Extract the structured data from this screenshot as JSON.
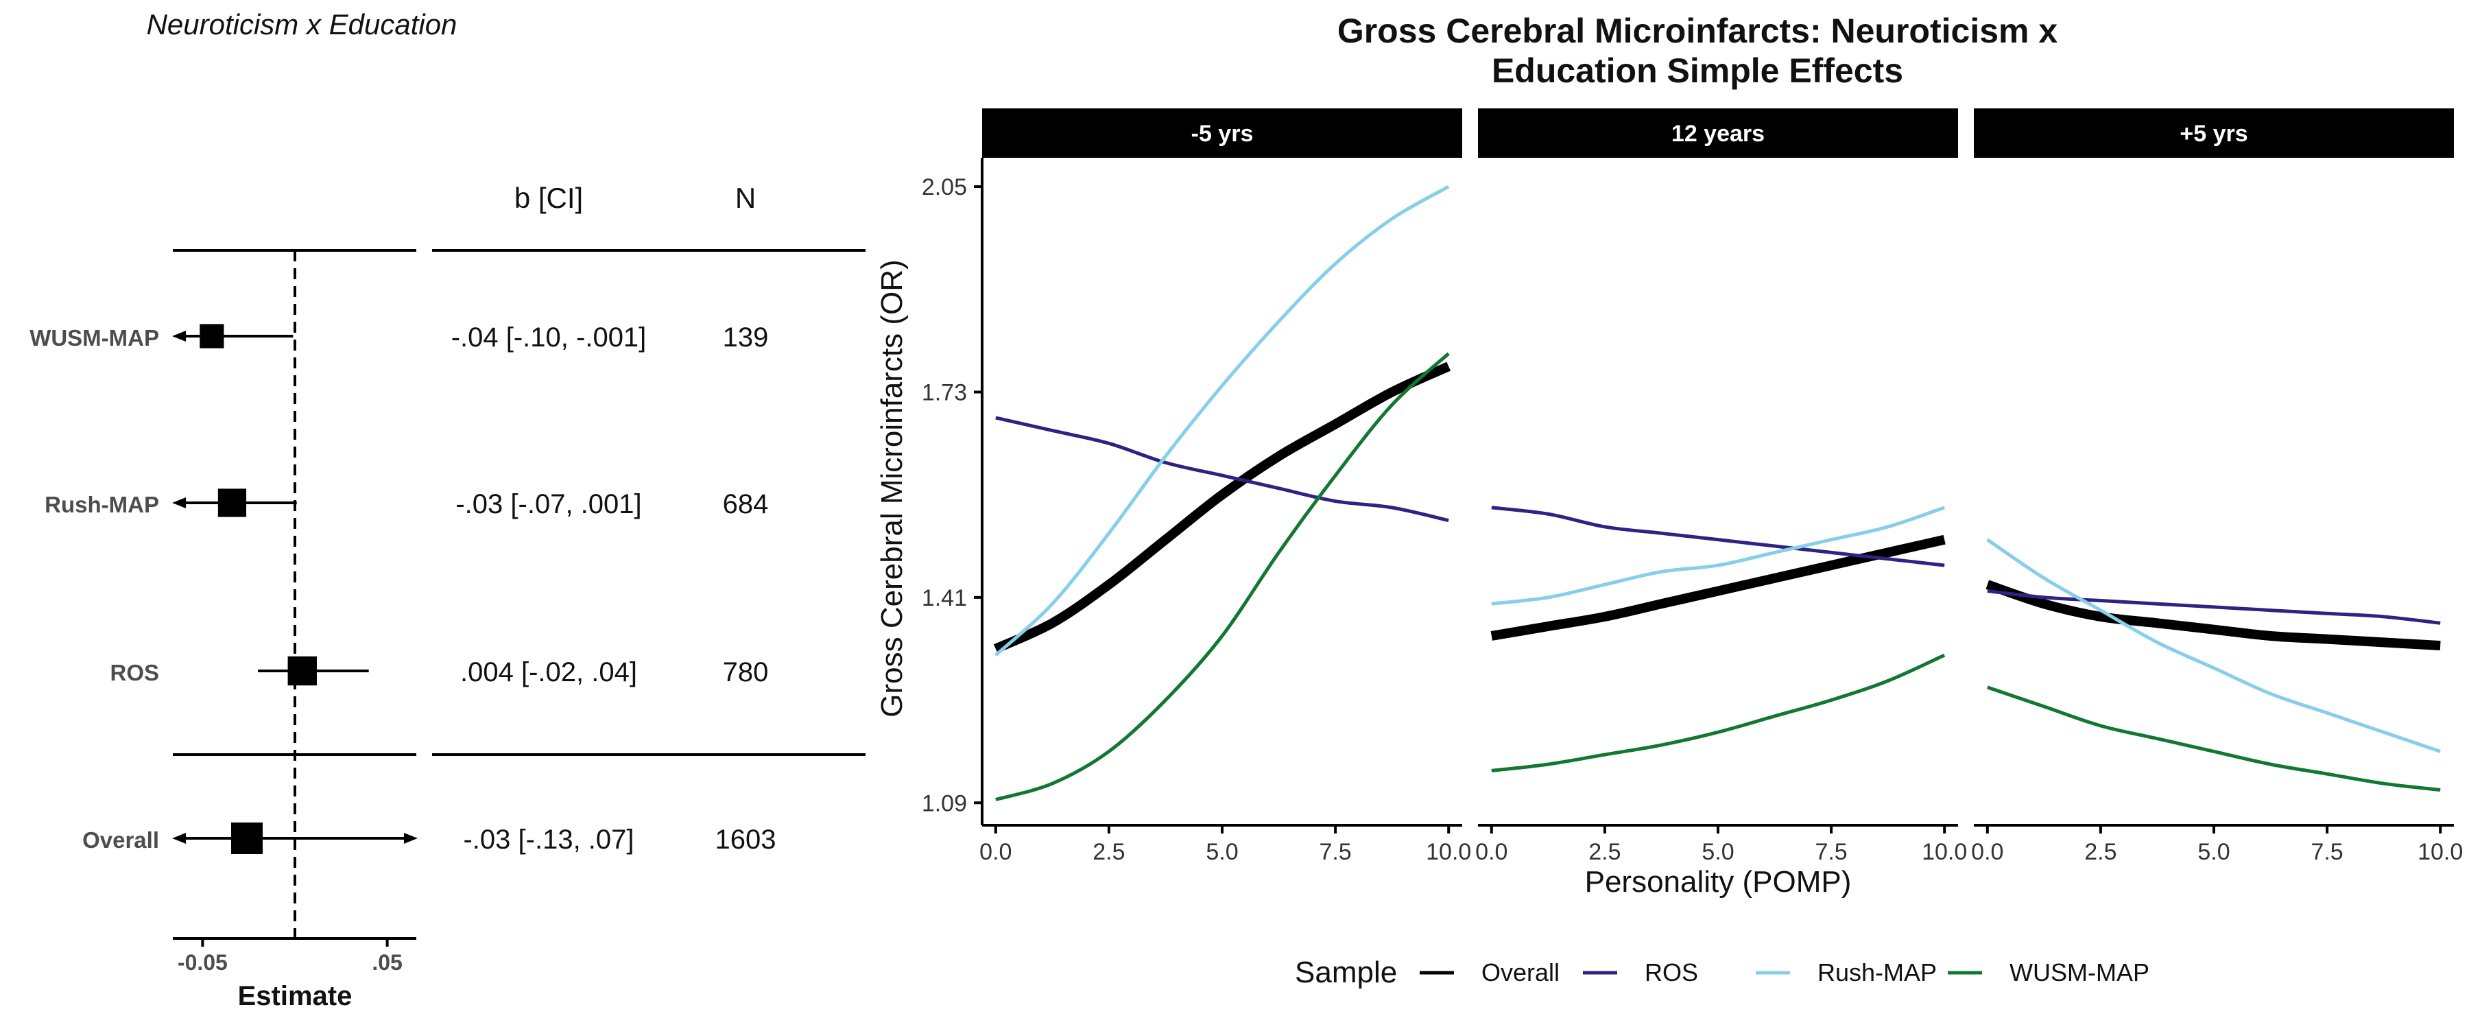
{
  "chart_data": [
    {
      "type": "forest",
      "title": "Neuroticism x Education",
      "xlabel": "Estimate",
      "xlim": [
        -0.065,
        0.065
      ],
      "reference_line": 0,
      "x_ticks": [
        -0.05,
        0.05
      ],
      "x_tick_labels": [
        "-0.05",
        ".05"
      ],
      "table_headers": {
        "estimate": "b [CI]",
        "n": "N"
      },
      "rows": [
        {
          "label": "WUSM-MAP",
          "estimate": -0.045,
          "ci_low": -0.062,
          "ci_high": -0.001,
          "marker_weight": 0.55,
          "arrow_low": true,
          "arrow_high": false,
          "ci_text": "-.04 [-.10, -.001]",
          "n": "139"
        },
        {
          "label": "Rush-MAP",
          "estimate": -0.034,
          "ci_low": -0.062,
          "ci_high": 0.001,
          "marker_weight": 0.8,
          "arrow_low": true,
          "arrow_high": false,
          "ci_text": "-.03 [-.07, .001]",
          "n": "684"
        },
        {
          "label": "ROS",
          "estimate": 0.004,
          "ci_low": -0.02,
          "ci_high": 0.04,
          "marker_weight": 0.85,
          "arrow_low": false,
          "arrow_high": false,
          "ci_text": ".004 [-.02, .04]",
          "n": "780"
        },
        {
          "label": "Overall",
          "estimate": -0.026,
          "ci_low": -0.062,
          "ci_high": 0.062,
          "marker_weight": 1.0,
          "arrow_low": true,
          "arrow_high": true,
          "ci_text": "-.03 [-.13, .07]",
          "n": "1603",
          "summary": true
        }
      ]
    },
    {
      "type": "line",
      "title": "Gross Cerebral Microinfarcts: Neuroticism x",
      "subtitle": "Education Simple Effects",
      "xlabel": "Personality (POMP)",
      "ylabel": "Gross Cerebral Microinfarcts (OR)",
      "xlim": [
        -0.3,
        10.3
      ],
      "ylim": [
        1.055,
        2.095
      ],
      "x_ticks": [
        0,
        2.5,
        5,
        7.5,
        10
      ],
      "x_tick_labels": [
        "0.0",
        "2.5",
        "5.0",
        "7.5",
        "10.0"
      ],
      "y_ticks": [
        1.09,
        1.41,
        1.73,
        2.05
      ],
      "y_tick_labels": [
        "1.09",
        "1.41",
        "1.73",
        "2.05"
      ],
      "x": [
        0,
        1.25,
        2.5,
        3.75,
        5,
        6.25,
        7.5,
        8.75,
        10
      ],
      "legend": {
        "title": "Sample",
        "placement": "bottom"
      },
      "series_styles": [
        {
          "name": "Overall",
          "color": "#000000",
          "width": 14
        },
        {
          "name": "ROS",
          "color": "#2D2383",
          "width": 5
        },
        {
          "name": "Rush-MAP",
          "color": "#87CEEB",
          "width": 5
        },
        {
          "name": "WUSM-MAP",
          "color": "#117733",
          "width": 5
        }
      ],
      "panels": [
        {
          "label": "-5 yrs",
          "series": [
            {
              "name": "Overall",
              "values": [
                1.33,
                1.37,
                1.43,
                1.5,
                1.57,
                1.63,
                1.68,
                1.73,
                1.77
              ]
            },
            {
              "name": "ROS",
              "values": [
                1.69,
                1.67,
                1.65,
                1.62,
                1.6,
                1.58,
                1.56,
                1.55,
                1.53
              ]
            },
            {
              "name": "Rush-MAP",
              "values": [
                1.32,
                1.4,
                1.51,
                1.63,
                1.74,
                1.84,
                1.93,
                2.0,
                2.05
              ]
            },
            {
              "name": "WUSM-MAP",
              "values": [
                1.095,
                1.12,
                1.17,
                1.25,
                1.35,
                1.48,
                1.6,
                1.71,
                1.79
              ]
            }
          ]
        },
        {
          "label": "12 years",
          "series": [
            {
              "name": "Overall",
              "values": [
                1.35,
                1.365,
                1.38,
                1.4,
                1.42,
                1.44,
                1.46,
                1.48,
                1.5
              ]
            },
            {
              "name": "ROS",
              "values": [
                1.55,
                1.54,
                1.52,
                1.51,
                1.5,
                1.49,
                1.48,
                1.47,
                1.46
              ]
            },
            {
              "name": "Rush-MAP",
              "values": [
                1.4,
                1.41,
                1.43,
                1.45,
                1.46,
                1.48,
                1.5,
                1.52,
                1.55
              ]
            },
            {
              "name": "WUSM-MAP",
              "values": [
                1.14,
                1.15,
                1.165,
                1.18,
                1.2,
                1.225,
                1.25,
                1.28,
                1.32
              ]
            }
          ]
        },
        {
          "label": "+5 yrs",
          "series": [
            {
              "name": "Overall",
              "values": [
                1.43,
                1.4,
                1.38,
                1.37,
                1.36,
                1.35,
                1.345,
                1.34,
                1.335
              ]
            },
            {
              "name": "ROS",
              "values": [
                1.42,
                1.41,
                1.405,
                1.4,
                1.395,
                1.39,
                1.385,
                1.38,
                1.37
              ]
            },
            {
              "name": "Rush-MAP",
              "values": [
                1.5,
                1.44,
                1.39,
                1.34,
                1.3,
                1.26,
                1.23,
                1.2,
                1.17
              ]
            },
            {
              "name": "WUSM-MAP",
              "values": [
                1.27,
                1.24,
                1.21,
                1.19,
                1.17,
                1.15,
                1.135,
                1.12,
                1.11
              ]
            }
          ]
        }
      ]
    }
  ]
}
